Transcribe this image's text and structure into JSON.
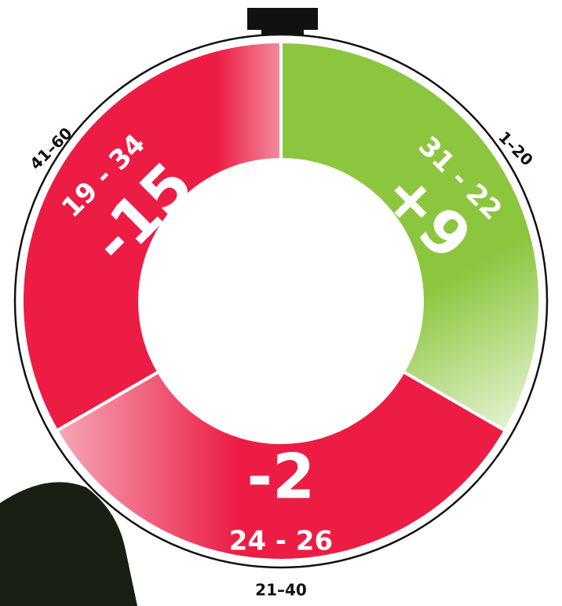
{
  "segments": [
    {
      "period": "1–20",
      "score": "31 - 22",
      "difference": "+9"
    },
    {
      "period": "21–40",
      "score": "24 - 26",
      "difference": "-2"
    },
    {
      "period": "41–60",
      "score": "19 - 34",
      "difference": "-15"
    }
  ]
}
